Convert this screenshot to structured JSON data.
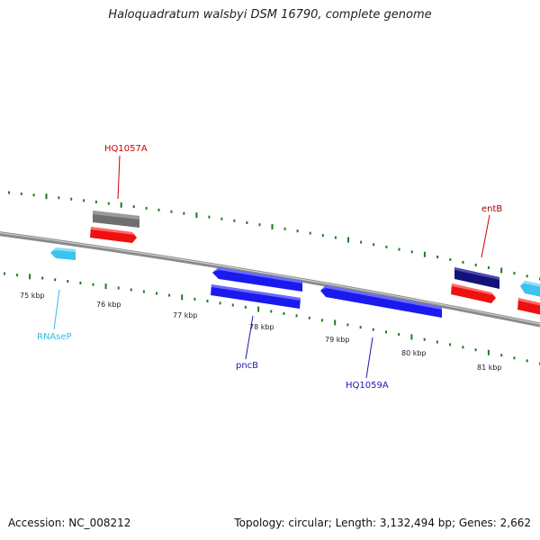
{
  "title": "Haloquadratum walsbyi DSM 16790, complete genome",
  "footer": {
    "accession": "Accession: NC_008212",
    "topology": "Topology: circular; Length: 3,132,494 bp; Genes: 2,662"
  },
  "colors": {
    "backbone": "#8a8a8a",
    "tick": "#1f7a1f",
    "red_gene": "#ee1111",
    "gray_gene": "#777777",
    "blue_gene": "#1a1aee",
    "navy_gene": "#12127a",
    "cyan_gene": "#3cc3ee",
    "red_label": "#cc0000",
    "blue_label": "#1a1aaa",
    "cyan_label": "#33bbee",
    "navy_label": "#990000"
  },
  "ticks": [
    {
      "label": "75 kbp"
    },
    {
      "label": "76 kbp"
    },
    {
      "label": "77 kbp"
    },
    {
      "label": "78 kbp"
    },
    {
      "label": "79 kbp"
    },
    {
      "label": "80 kbp"
    },
    {
      "label": "81 kbp"
    }
  ],
  "genes": [
    {
      "name": "HQ1057A",
      "color_key": "gray_gene"
    },
    {
      "name": "",
      "color_key": "red_gene"
    },
    {
      "name": "RNAseP",
      "color_key": "cyan_gene"
    },
    {
      "name": "",
      "color_key": "blue_gene"
    },
    {
      "name": "pncB",
      "color_key": "blue_gene"
    },
    {
      "name": "HQ1059A",
      "color_key": "blue_gene"
    },
    {
      "name": "entB",
      "color_key": "navy_gene"
    },
    {
      "name": "",
      "color_key": "red_gene"
    },
    {
      "name": "",
      "color_key": "cyan_gene"
    },
    {
      "name": "",
      "color_key": "red_gene"
    }
  ]
}
